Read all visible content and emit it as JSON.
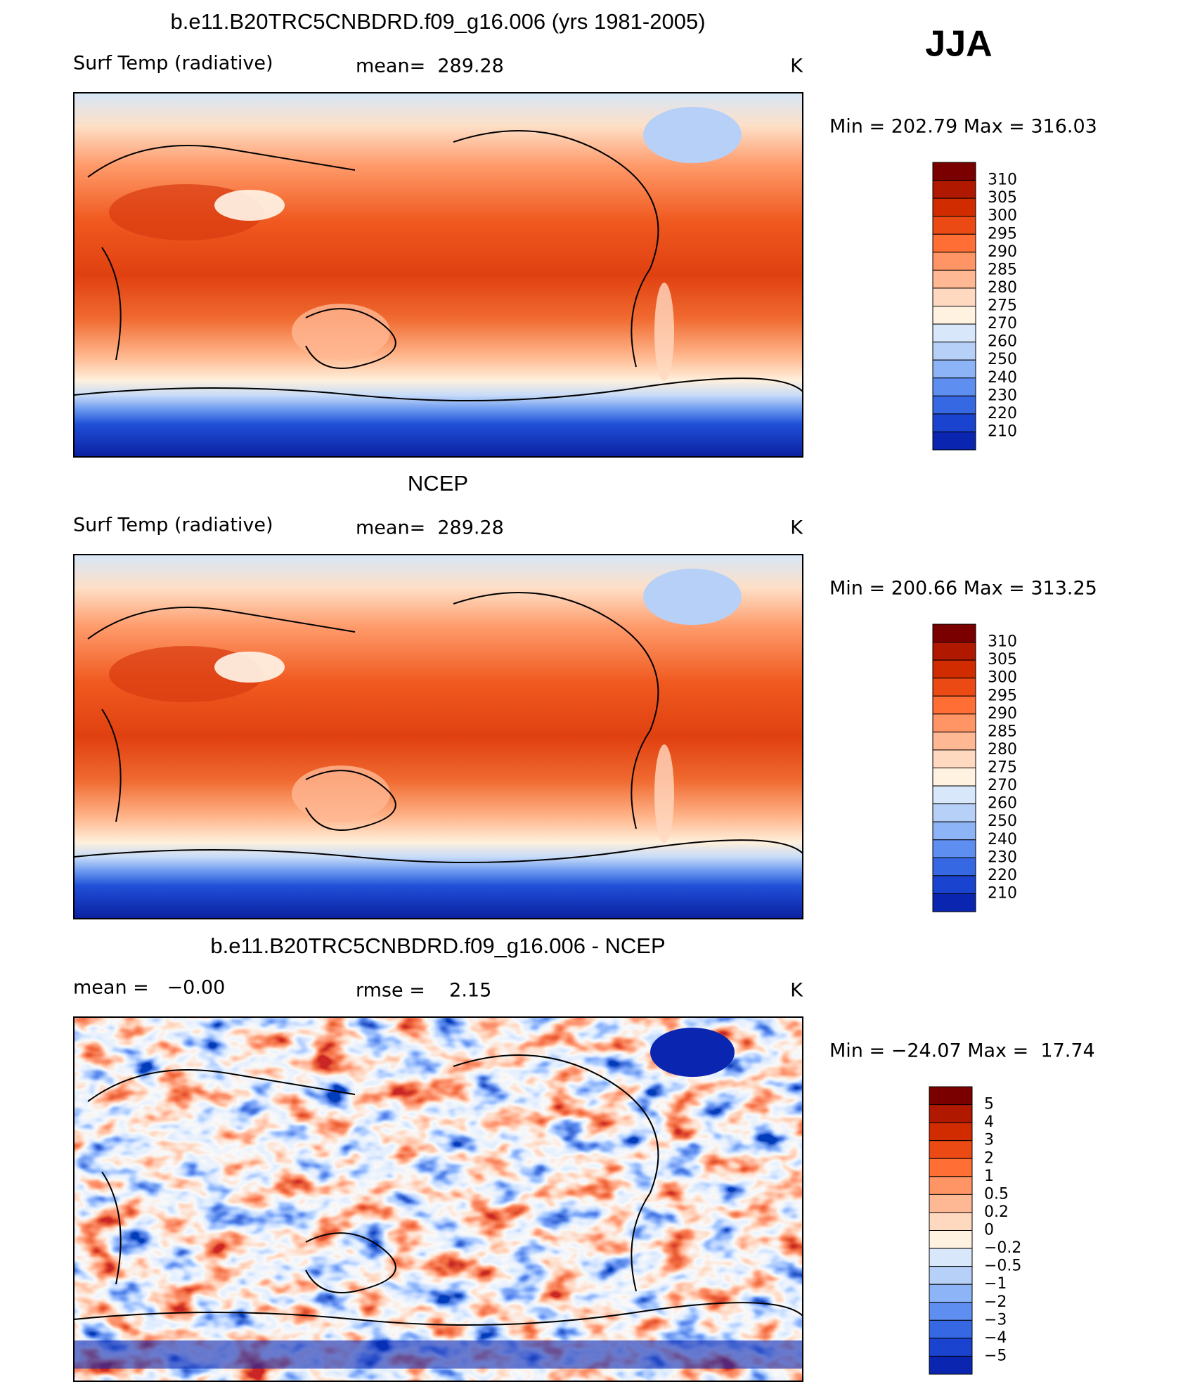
{
  "header": {
    "season": "JJA"
  },
  "panels": [
    {
      "title": "b.e11.B20TRC5CNBDRD.f09_g16.006 (yrs 1981-2005)",
      "left_label": "Surf Temp (radiative)",
      "center_label": "mean=  289.28",
      "units": "K",
      "min_max": "Min = 202.79 Max = 316.03",
      "colorbar_labels": [
        "310",
        "305",
        "300",
        "295",
        "290",
        "285",
        "280",
        "275",
        "270",
        "260",
        "250",
        "240",
        "230",
        "220",
        "210"
      ]
    },
    {
      "title": "NCEP",
      "left_label": "Surf Temp (radiative)",
      "center_label": "mean=  289.28",
      "units": "K",
      "min_max": "Min = 200.66 Max = 313.25",
      "colorbar_labels": [
        "310",
        "305",
        "300",
        "295",
        "290",
        "285",
        "280",
        "275",
        "270",
        "260",
        "250",
        "240",
        "230",
        "220",
        "210"
      ]
    },
    {
      "title": "b.e11.B20TRC5CNBDRD.f09_g16.006 - NCEP",
      "left_label": "mean =   −0.00",
      "center_label": "rmse =    2.15",
      "units": "K",
      "min_max": "Min = −24.07 Max =  17.74",
      "colorbar_labels": [
        "5",
        "4",
        "3",
        "2",
        "1",
        "0.5",
        "0.2",
        "0",
        "−0.2",
        "−0.5",
        "−1",
        "−2",
        "−3",
        "−4",
        "−5"
      ]
    }
  ]
}
